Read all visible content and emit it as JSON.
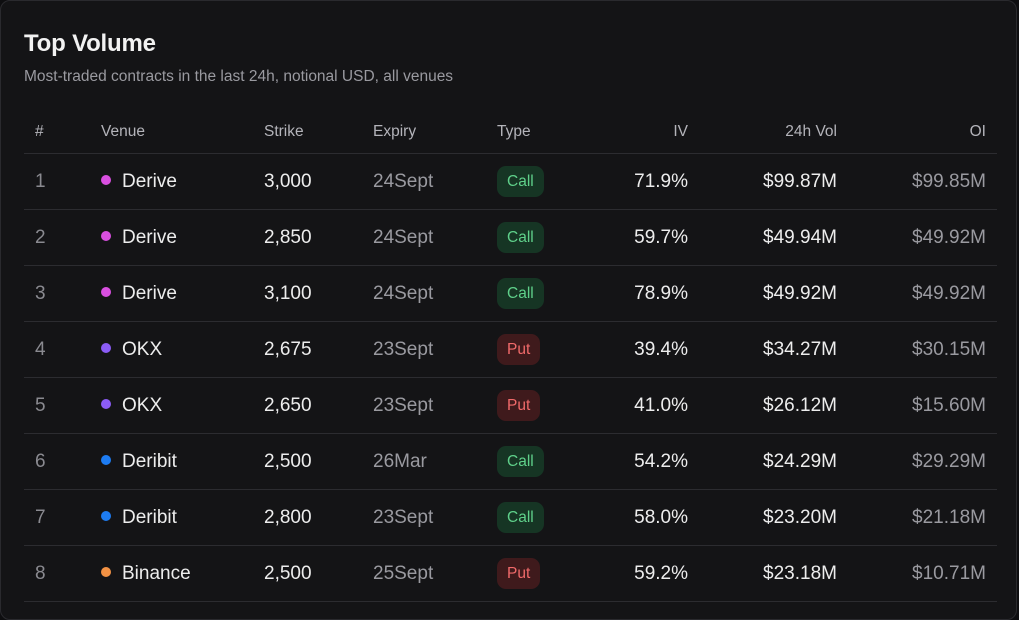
{
  "panel": {
    "title": "Top Volume",
    "subtitle": "Most-traded contracts in the last 24h, notional USD, all venues"
  },
  "colors": {
    "Derive": "#d94fe0",
    "OKX": "#8b5cf6",
    "Deribit": "#1d7cf2",
    "Binance": "#f39244",
    "call_bg": "#163524",
    "call_text": "#5fd08a",
    "put_bg": "#3f1a1c",
    "put_text": "#f06a6a"
  },
  "table": {
    "headers": {
      "num": "#",
      "venue": "Venue",
      "strike": "Strike",
      "expiry": "Expiry",
      "type": "Type",
      "iv": "IV",
      "vol": "24h Vol",
      "oi": "OI"
    },
    "rows": [
      {
        "num": "1",
        "venue": "Derive",
        "strike": "3,000",
        "expiry": "24Sept",
        "type": "Call",
        "iv": "71.9%",
        "vol": "$99.87M",
        "oi": "$99.85M"
      },
      {
        "num": "2",
        "venue": "Derive",
        "strike": "2,850",
        "expiry": "24Sept",
        "type": "Call",
        "iv": "59.7%",
        "vol": "$49.94M",
        "oi": "$49.92M"
      },
      {
        "num": "3",
        "venue": "Derive",
        "strike": "3,100",
        "expiry": "24Sept",
        "type": "Call",
        "iv": "78.9%",
        "vol": "$49.92M",
        "oi": "$49.92M"
      },
      {
        "num": "4",
        "venue": "OKX",
        "strike": "2,675",
        "expiry": "23Sept",
        "type": "Put",
        "iv": "39.4%",
        "vol": "$34.27M",
        "oi": "$30.15M"
      },
      {
        "num": "5",
        "venue": "OKX",
        "strike": "2,650",
        "expiry": "23Sept",
        "type": "Put",
        "iv": "41.0%",
        "vol": "$26.12M",
        "oi": "$15.60M"
      },
      {
        "num": "6",
        "venue": "Deribit",
        "strike": "2,500",
        "expiry": "26Mar",
        "type": "Call",
        "iv": "54.2%",
        "vol": "$24.29M",
        "oi": "$29.29M"
      },
      {
        "num": "7",
        "venue": "Deribit",
        "strike": "2,800",
        "expiry": "23Sept",
        "type": "Call",
        "iv": "58.0%",
        "vol": "$23.20M",
        "oi": "$21.18M"
      },
      {
        "num": "8",
        "venue": "Binance",
        "strike": "2,500",
        "expiry": "25Sept",
        "type": "Put",
        "iv": "59.2%",
        "vol": "$23.18M",
        "oi": "$10.71M"
      }
    ]
  }
}
